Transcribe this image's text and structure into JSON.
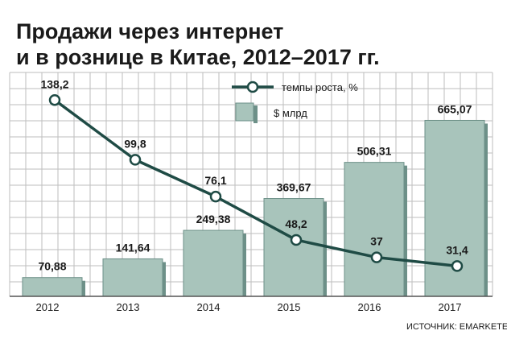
{
  "chart_data": {
    "type": "bar",
    "title_line1": "Продажи через интернет",
    "title_line2": "и в рознице в Китае, 2012–2017 гг.",
    "categories": [
      "2012",
      "2013",
      "2014",
      "2015",
      "2016",
      "2017"
    ],
    "series": [
      {
        "name": "$ млрд",
        "kind": "bar",
        "values": [
          70.88,
          141.64,
          249.38,
          369.67,
          506.31,
          665.07
        ],
        "labels": [
          "70,88",
          "141,64",
          "249,38",
          "369,67",
          "506,31",
          "665,07"
        ]
      },
      {
        "name": "темпы роста, %",
        "kind": "line",
        "values": [
          138.2,
          99.8,
          76.1,
          48.2,
          37,
          31.4
        ],
        "labels": [
          "138,2",
          "99,8",
          "76,1",
          "48,2",
          "37",
          "31,4"
        ]
      }
    ],
    "bar_ylim": [
      0,
      700
    ],
    "line_ylim": [
      0,
      160
    ],
    "grid": true,
    "legend": "top-right",
    "source": "ИСТОЧНИК: EMARKETER",
    "colors": {
      "bar_fill": "#a8c4bb",
      "bar_edge": "#6d9088",
      "line": "#1f4b45",
      "grid": "#bdbdbd",
      "text": "#1a1a1a"
    }
  }
}
